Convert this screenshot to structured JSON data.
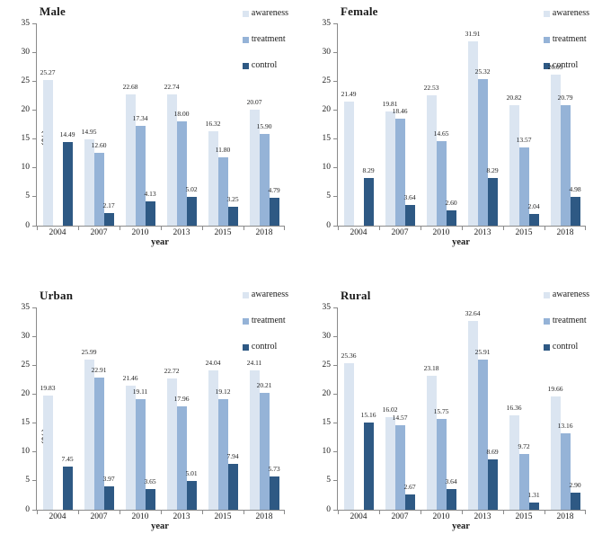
{
  "figure": {
    "background": "#ffffff",
    "axis_line_color": "#8a8a8a",
    "text_color": "#1a1a1a"
  },
  "series_colors": {
    "awareness": "#dbe5f1",
    "treatment": "#95b3d7",
    "control": "#2e5984"
  },
  "chart_data": [
    {
      "type": "bar",
      "title": "Male",
      "xlabel": "year",
      "ylabel": "(%)",
      "ylim": [
        0,
        35
      ],
      "yticks": [
        0,
        5,
        10,
        15,
        20,
        25,
        30,
        35
      ],
      "grid": false,
      "legend_position": "top-right",
      "categories": [
        "2004",
        "2007",
        "2010",
        "2013",
        "2015",
        "2018"
      ],
      "series": [
        {
          "name": "awareness",
          "color": "#dbe5f1",
          "values": [
            25.27,
            14.95,
            22.68,
            22.74,
            16.32,
            20.07
          ]
        },
        {
          "name": "treatment",
          "color": "#95b3d7",
          "values": [
            null,
            12.6,
            17.34,
            18.0,
            11.8,
            15.9
          ]
        },
        {
          "name": "control",
          "color": "#2e5984",
          "values": [
            14.49,
            2.17,
            4.13,
            5.02,
            3.25,
            4.79
          ]
        }
      ]
    },
    {
      "type": "bar",
      "title": "Female",
      "xlabel": "year",
      "ylabel": "",
      "ylim": [
        0,
        35
      ],
      "yticks": [
        0,
        5,
        10,
        15,
        20,
        25,
        30,
        35
      ],
      "grid": false,
      "legend_position": "top-right",
      "categories": [
        "2004",
        "2007",
        "2010",
        "2013",
        "2015",
        "2018"
      ],
      "series": [
        {
          "name": "awareness",
          "color": "#dbe5f1",
          "values": [
            21.49,
            19.81,
            22.53,
            31.91,
            20.82,
            26.09
          ]
        },
        {
          "name": "treatment",
          "color": "#95b3d7",
          "values": [
            null,
            18.46,
            14.65,
            25.32,
            13.57,
            20.79
          ]
        },
        {
          "name": "control",
          "color": "#2e5984",
          "values": [
            8.29,
            3.64,
            2.6,
            8.29,
            2.04,
            4.98
          ]
        }
      ]
    },
    {
      "type": "bar",
      "title": "Urban",
      "xlabel": "year",
      "ylabel": "(%)",
      "ylim": [
        0,
        35
      ],
      "yticks": [
        0,
        5,
        10,
        15,
        20,
        25,
        30,
        35
      ],
      "grid": false,
      "legend_position": "top-right",
      "categories": [
        "2004",
        "2007",
        "2010",
        "2013",
        "2015",
        "2018"
      ],
      "series": [
        {
          "name": "awareness",
          "color": "#dbe5f1",
          "values": [
            19.83,
            25.99,
            21.46,
            22.72,
            24.04,
            24.11
          ]
        },
        {
          "name": "treatment",
          "color": "#95b3d7",
          "values": [
            null,
            22.91,
            19.11,
            17.96,
            19.12,
            20.21
          ]
        },
        {
          "name": "control",
          "color": "#2e5984",
          "values": [
            7.45,
            3.97,
            3.65,
            5.01,
            7.94,
            5.73
          ]
        }
      ]
    },
    {
      "type": "bar",
      "title": "Rural",
      "xlabel": "year",
      "ylabel": "",
      "ylim": [
        0,
        35
      ],
      "yticks": [
        0,
        5,
        10,
        15,
        20,
        25,
        30,
        35
      ],
      "grid": false,
      "legend_position": "top-right",
      "categories": [
        "2004",
        "2007",
        "2010",
        "2013",
        "2015",
        "2018"
      ],
      "series": [
        {
          "name": "awareness",
          "color": "#dbe5f1",
          "values": [
            25.36,
            16.02,
            23.18,
            32.64,
            16.36,
            19.66
          ]
        },
        {
          "name": "treatment",
          "color": "#95b3d7",
          "values": [
            null,
            14.57,
            15.75,
            25.91,
            9.72,
            13.16
          ]
        },
        {
          "name": "control",
          "color": "#2e5984",
          "values": [
            15.16,
            2.67,
            3.64,
            8.69,
            1.31,
            2.9
          ]
        }
      ]
    }
  ]
}
